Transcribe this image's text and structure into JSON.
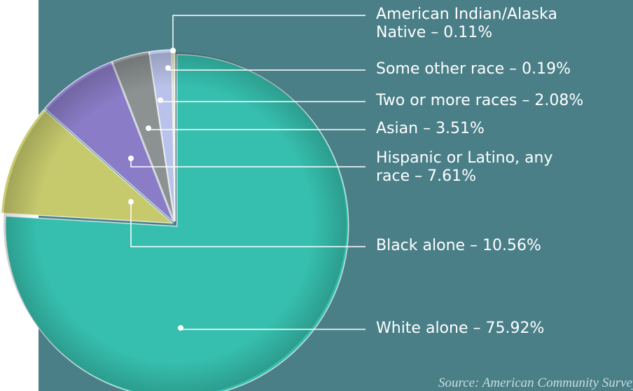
{
  "chart_data": {
    "type": "pie",
    "categories": [
      "American Indian/Alaska Native",
      "Some other race",
      "Two or more races",
      "Asian",
      "Hispanic or Latino, any race",
      "Black alone",
      "White alone"
    ],
    "values": [
      0.11,
      0.19,
      2.08,
      3.51,
      7.61,
      10.56,
      75.92
    ],
    "value_labels": [
      "0.11%",
      "0.19%",
      "2.08%",
      "3.51%",
      "7.61%",
      "10.56%",
      "75.92%"
    ],
    "colors": [
      "#e2e2b4",
      "#cdd48e",
      "#b9c2ea",
      "#8c9192",
      "#8a7cc6",
      "#c6c96c",
      "#36bfae"
    ],
    "separator": "–",
    "source": "Source: American Community Survey"
  }
}
